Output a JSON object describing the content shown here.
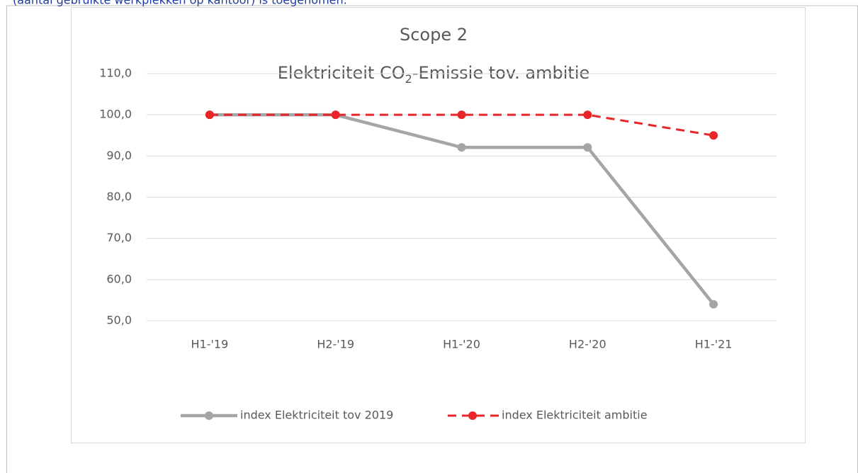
{
  "header_text": "(aantal gebruikte werkplekken op kantoor) is toegenomen.",
  "chart_data": {
    "type": "line",
    "title": "Scope 2",
    "subtitle_parts": [
      "Elektriciteit CO",
      "2",
      "-Emissie tov. ambitie"
    ],
    "categories": [
      "H1-'19",
      "H2-'19",
      "H1-'20",
      "H2-'20",
      "H1-'21"
    ],
    "series": [
      {
        "name": "index Elektriciteit tov 2019",
        "color": "#a5a5a5",
        "dash": false,
        "values": [
          100,
          100,
          92.1,
          92.1,
          54
        ]
      },
      {
        "name": "index Elektriciteit ambitie",
        "color": "#e8262a",
        "dash": true,
        "values": [
          100,
          100,
          100,
          100,
          95
        ]
      }
    ],
    "ylim": [
      50,
      110
    ],
    "yticks": [
      {
        "value": 50,
        "label": "50,0"
      },
      {
        "value": 60,
        "label": "60,0"
      },
      {
        "value": 70,
        "label": "70,0"
      },
      {
        "value": 80,
        "label": "80,0"
      },
      {
        "value": 90,
        "label": "90,0"
      },
      {
        "value": 100,
        "label": "100,0"
      },
      {
        "value": 110,
        "label": "110,0"
      }
    ],
    "grid": true,
    "legend": "bottom"
  }
}
